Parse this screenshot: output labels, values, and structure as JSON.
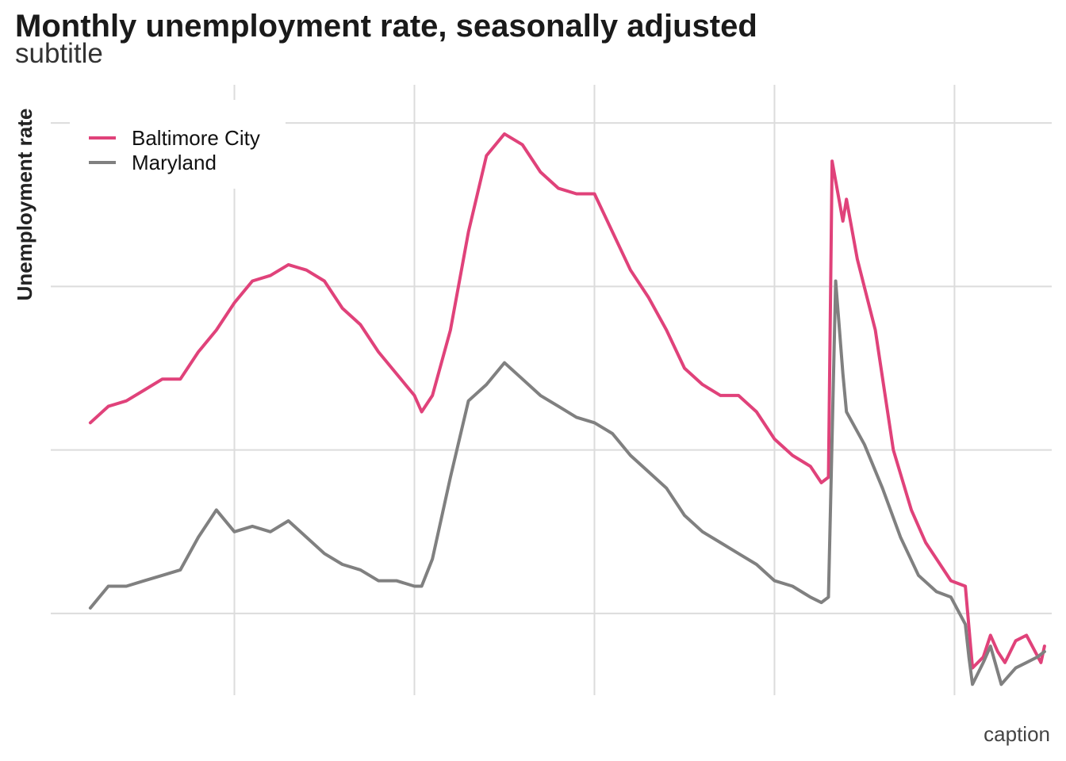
{
  "chart_data": {
    "type": "line",
    "title": "Monthly unemployment rate, seasonally adjusted",
    "subtitle": "subtitle",
    "caption": "caption",
    "ylabel": "Unemployment rate",
    "xlabel": "",
    "ylim": [
      1.5,
      12.7
    ],
    "y_gridlines": [
      3,
      6,
      9,
      12
    ],
    "x_gridlines": [
      2000,
      2005,
      2010,
      2015,
      2020
    ],
    "x_range": [
      1994.9,
      2022.7
    ],
    "legend_position": "top-left",
    "grid": true,
    "series": [
      {
        "name": "Baltimore City",
        "color": "#e0427a",
        "points": [
          [
            1996.0,
            6.5
          ],
          [
            1996.5,
            6.8
          ],
          [
            1997.0,
            6.9
          ],
          [
            1997.5,
            7.1
          ],
          [
            1998.0,
            7.3
          ],
          [
            1998.5,
            7.3
          ],
          [
            1999.0,
            7.8
          ],
          [
            1999.5,
            8.2
          ],
          [
            2000.0,
            8.7
          ],
          [
            2000.5,
            9.1
          ],
          [
            2001.0,
            9.2
          ],
          [
            2001.5,
            9.4
          ],
          [
            2002.0,
            9.3
          ],
          [
            2002.5,
            9.1
          ],
          [
            2003.0,
            8.6
          ],
          [
            2003.5,
            8.3
          ],
          [
            2004.0,
            7.8
          ],
          [
            2004.5,
            7.4
          ],
          [
            2005.0,
            7.0
          ],
          [
            2005.2,
            6.7
          ],
          [
            2005.5,
            7.0
          ],
          [
            2006.0,
            8.2
          ],
          [
            2006.5,
            10.0
          ],
          [
            2007.0,
            11.4
          ],
          [
            2007.5,
            11.8
          ],
          [
            2008.0,
            11.6
          ],
          [
            2008.5,
            11.1
          ],
          [
            2009.0,
            10.8
          ],
          [
            2009.5,
            10.7
          ],
          [
            2010.0,
            10.7
          ],
          [
            2010.5,
            10.0
          ],
          [
            2011.0,
            9.3
          ],
          [
            2011.5,
            8.8
          ],
          [
            2012.0,
            8.2
          ],
          [
            2012.5,
            7.5
          ],
          [
            2013.0,
            7.2
          ],
          [
            2013.5,
            7.0
          ],
          [
            2014.0,
            7.0
          ],
          [
            2014.5,
            6.7
          ],
          [
            2015.0,
            6.2
          ],
          [
            2015.5,
            5.9
          ],
          [
            2016.0,
            5.7
          ],
          [
            2016.3,
            5.4
          ],
          [
            2016.5,
            5.5
          ],
          [
            2016.6,
            11.3
          ],
          [
            2016.9,
            10.2
          ],
          [
            2017.0,
            10.6
          ],
          [
            2017.3,
            9.5
          ],
          [
            2017.8,
            8.2
          ],
          [
            2018.3,
            6.0
          ],
          [
            2018.8,
            4.9
          ],
          [
            2019.2,
            4.3
          ],
          [
            2019.6,
            3.9
          ],
          [
            2019.9,
            3.6
          ],
          [
            2020.3,
            3.5
          ],
          [
            2020.5,
            2.0
          ],
          [
            2020.8,
            2.2
          ],
          [
            2021.0,
            2.6
          ],
          [
            2021.2,
            2.3
          ],
          [
            2021.4,
            2.1
          ],
          [
            2021.7,
            2.5
          ],
          [
            2022.0,
            2.6
          ],
          [
            2022.4,
            2.1
          ],
          [
            2022.5,
            2.4
          ]
        ]
      },
      {
        "name": "Maryland",
        "color": "#808080",
        "points": [
          [
            1996.0,
            3.1
          ],
          [
            1996.5,
            3.5
          ],
          [
            1997.0,
            3.5
          ],
          [
            1997.5,
            3.6
          ],
          [
            1998.0,
            3.7
          ],
          [
            1998.5,
            3.8
          ],
          [
            1999.0,
            4.4
          ],
          [
            1999.5,
            4.9
          ],
          [
            2000.0,
            4.5
          ],
          [
            2000.5,
            4.6
          ],
          [
            2001.0,
            4.5
          ],
          [
            2001.5,
            4.7
          ],
          [
            2002.0,
            4.4
          ],
          [
            2002.5,
            4.1
          ],
          [
            2003.0,
            3.9
          ],
          [
            2003.5,
            3.8
          ],
          [
            2004.0,
            3.6
          ],
          [
            2004.5,
            3.6
          ],
          [
            2005.0,
            3.5
          ],
          [
            2005.2,
            3.5
          ],
          [
            2005.5,
            4.0
          ],
          [
            2006.0,
            5.5
          ],
          [
            2006.5,
            6.9
          ],
          [
            2007.0,
            7.2
          ],
          [
            2007.5,
            7.6
          ],
          [
            2008.0,
            7.3
          ],
          [
            2008.5,
            7.0
          ],
          [
            2009.0,
            6.8
          ],
          [
            2009.5,
            6.6
          ],
          [
            2010.0,
            6.5
          ],
          [
            2010.5,
            6.3
          ],
          [
            2011.0,
            5.9
          ],
          [
            2011.5,
            5.6
          ],
          [
            2012.0,
            5.3
          ],
          [
            2012.5,
            4.8
          ],
          [
            2013.0,
            4.5
          ],
          [
            2013.5,
            4.3
          ],
          [
            2014.0,
            4.1
          ],
          [
            2014.5,
            3.9
          ],
          [
            2015.0,
            3.6
          ],
          [
            2015.5,
            3.5
          ],
          [
            2016.0,
            3.3
          ],
          [
            2016.3,
            3.2
          ],
          [
            2016.5,
            3.3
          ],
          [
            2016.7,
            9.1
          ],
          [
            2016.9,
            7.4
          ],
          [
            2017.0,
            6.7
          ],
          [
            2017.5,
            6.1
          ],
          [
            2018.0,
            5.3
          ],
          [
            2018.5,
            4.4
          ],
          [
            2019.0,
            3.7
          ],
          [
            2019.5,
            3.4
          ],
          [
            2019.9,
            3.3
          ],
          [
            2020.3,
            2.8
          ],
          [
            2020.4,
            2.2
          ],
          [
            2020.5,
            1.7
          ],
          [
            2020.8,
            2.1
          ],
          [
            2021.0,
            2.4
          ],
          [
            2021.3,
            1.7
          ],
          [
            2021.7,
            2.0
          ],
          [
            2022.0,
            2.1
          ],
          [
            2022.3,
            2.2
          ],
          [
            2022.5,
            2.3
          ]
        ]
      }
    ]
  }
}
